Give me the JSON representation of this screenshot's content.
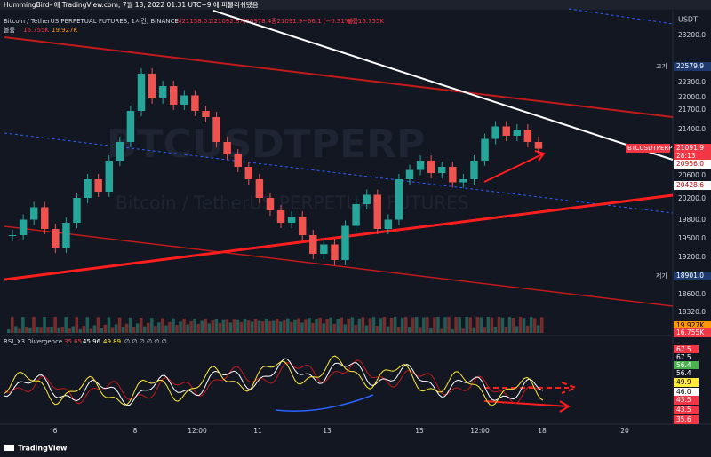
{
  "header": {
    "text": "HummingBird- 에 TradingView.com, 7월 18, 2022 01:31 UTC+9 에 퍼블리쉬됐음"
  },
  "legend": {
    "symbol": "Bitcoin / TetherUS PERPETUAL FUTURES, 1시간, BINANCE",
    "open": "시21158.0",
    "high": "고21092.8",
    "low": "저20978.4",
    "close": "종21091.9",
    "change": "−66.1 (−0.31%)",
    "volume": "볼륨16.755K",
    "vol_label": "볼륨",
    "vol_a": "16.755K",
    "vol_b": "19.927K"
  },
  "watermark": {
    "ticker": "BTCUSDTPERP",
    "name": "Bitcoin / TetherUS PERPETUAL FUTURES"
  },
  "price_axis": {
    "unit": "USDT",
    "labels": [
      "23200.0",
      "22300.0",
      "22000.0",
      "21700.0",
      "21400.0",
      "20600.0",
      "20200.0",
      "19800.0",
      "19500.0",
      "19200.0",
      "18600.0",
      "18320.0"
    ]
  },
  "price_tags": {
    "high_caption": "고가",
    "high": "22579.9",
    "symbol": "BTCUSDTPERP",
    "last": "21091.9",
    "countdown": "28:13",
    "t1": "20956.0",
    "t2": "20428.6",
    "low_caption": "저가",
    "low": "18901.0",
    "vol_a": "19.927K",
    "vol_b": "16.755K"
  },
  "chart": {
    "closes": [
      19700,
      19950,
      20150,
      19800,
      19500,
      19900,
      20300,
      20600,
      20400,
      20900,
      21200,
      21700,
      22300,
      21900,
      22100,
      21800,
      21950,
      21700,
      21600,
      21200,
      21000,
      20800,
      20600,
      20300,
      20100,
      19900,
      20000,
      19700,
      19400,
      19550,
      19300,
      19850,
      20200,
      20350,
      19800,
      19950,
      20600,
      20750,
      20900,
      20700,
      20800,
      20550,
      20600,
      20900,
      21250,
      21450,
      21300,
      21400,
      21200,
      21091.9
    ]
  },
  "rsi": {
    "title": "RSI_X3 Divergence",
    "v1": "35.65",
    "v2": "45.96",
    "v3": "49.89",
    "rest": "∅ ∅ ∅ ∅ ∅ ∅",
    "tags": [
      "67.5",
      "67.5",
      "56.4",
      "56.4",
      "49.9",
      "46.0",
      "43.5",
      "43.5",
      "35.6"
    ]
  },
  "time_axis": [
    "6",
    "8",
    "12:00",
    "11",
    "13",
    "15",
    "12:00",
    "18",
    "20"
  ],
  "footer": {
    "brand": "TradingView"
  }
}
